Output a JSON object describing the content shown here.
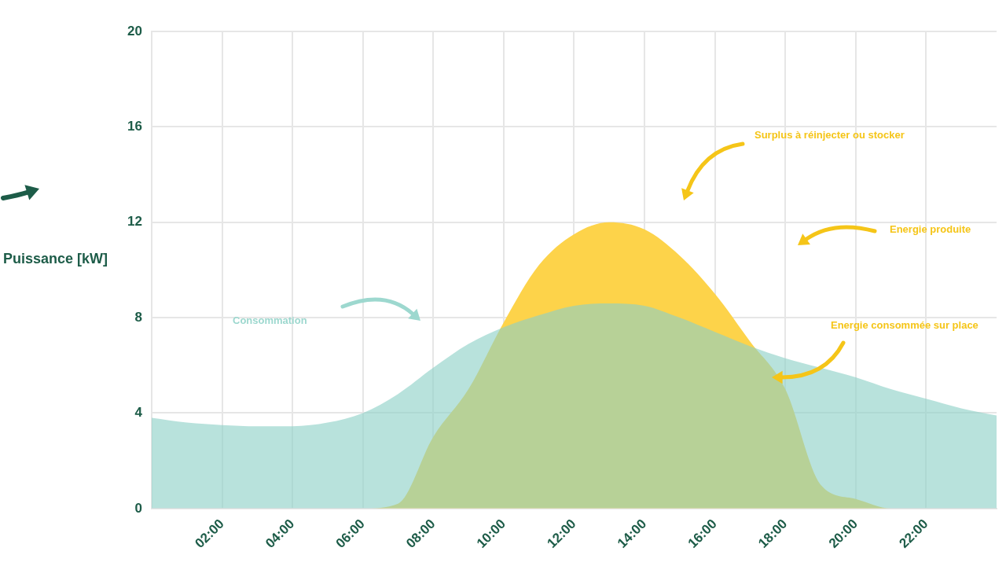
{
  "chart_data": {
    "type": "area",
    "y_label": "Puissance [kW]",
    "x": [
      0,
      1,
      2,
      3,
      4,
      5,
      6,
      7,
      8,
      9,
      10,
      11,
      12,
      13,
      14,
      15,
      16,
      17,
      18,
      19,
      20,
      21,
      22,
      23,
      24
    ],
    "series": [
      {
        "name": "Consommation",
        "color": "#8cd0c6",
        "values": [
          3.8,
          3.6,
          3.5,
          3.45,
          3.45,
          3.6,
          4.0,
          4.8,
          5.9,
          6.9,
          7.6,
          8.1,
          8.5,
          8.6,
          8.5,
          8.0,
          7.4,
          6.8,
          6.3,
          5.9,
          5.5,
          5.0,
          4.6,
          4.2,
          3.9
        ]
      },
      {
        "name": "Energie produite",
        "color": "#fdd34a",
        "values": [
          0,
          0,
          0,
          0,
          0,
          0,
          0,
          0.2,
          3.0,
          5.0,
          7.8,
          10.2,
          11.5,
          12.0,
          11.7,
          10.6,
          9.0,
          7.0,
          5.0,
          1.0,
          0.4,
          0,
          0,
          0,
          0
        ]
      }
    ],
    "annotations": [
      {
        "text": "Consommation",
        "color": "#9dd8cf"
      },
      {
        "text": "Surplus à réinjecter ou stocker",
        "color": "#f5c518"
      },
      {
        "text": "Energie produite",
        "color": "#f5c518"
      },
      {
        "text": "Energie consommée sur place",
        "color": "#f5c518"
      }
    ],
    "xlim": [
      0,
      24
    ],
    "xticks": [
      {
        "value": 2,
        "label": "02:00"
      },
      {
        "value": 4,
        "label": "04:00"
      },
      {
        "value": 6,
        "label": "06:00"
      },
      {
        "value": 8,
        "label": "08:00"
      },
      {
        "value": 10,
        "label": "10:00"
      },
      {
        "value": 12,
        "label": "12:00"
      },
      {
        "value": 14,
        "label": "14:00"
      },
      {
        "value": 16,
        "label": "16:00"
      },
      {
        "value": 18,
        "label": "18:00"
      },
      {
        "value": 20,
        "label": "20:00"
      },
      {
        "value": 22,
        "label": "22:00"
      }
    ],
    "ylim": [
      0,
      20
    ],
    "yticks": [
      0,
      4,
      8,
      12,
      16,
      20
    ],
    "grid": true
  }
}
